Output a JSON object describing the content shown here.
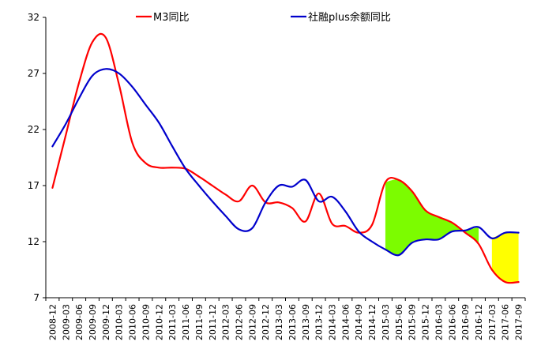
{
  "chart_data": {
    "type": "line",
    "title": "",
    "xlabel": "",
    "ylabel": "",
    "ylim": [
      7,
      32
    ],
    "yticks": [
      7,
      12,
      17,
      22,
      27,
      32
    ],
    "categories": [
      "2008-12",
      "2009-03",
      "2009-06",
      "2009-09",
      "2009-12",
      "2010-03",
      "2010-06",
      "2010-09",
      "2010-12",
      "2011-03",
      "2011-06",
      "2011-09",
      "2011-12",
      "2012-03",
      "2012-06",
      "2012-09",
      "2012-12",
      "2013-03",
      "2013-06",
      "2013-09",
      "2013-12",
      "2014-03",
      "2014-06",
      "2014-09",
      "2014-12",
      "2015-03",
      "2015-06",
      "2015-09",
      "2015-12",
      "2016-03",
      "2016-06",
      "2016-09",
      "2016-12",
      "2017-03",
      "2017-06",
      "2017-09"
    ],
    "legend_position": "top",
    "grid": false,
    "series": [
      {
        "name": "M3同比",
        "color": "#ff0000",
        "values": [
          16.8,
          21.5,
          26.2,
          29.8,
          30.2,
          26.0,
          20.8,
          19.0,
          18.6,
          18.6,
          18.5,
          17.8,
          17.0,
          16.2,
          15.6,
          17.0,
          15.5,
          15.5,
          15.0,
          13.8,
          16.3,
          13.6,
          13.4,
          12.8,
          13.5,
          17.3,
          17.5,
          16.5,
          14.8,
          14.2,
          13.7,
          12.8,
          11.8,
          9.5,
          8.4,
          8.4
        ]
      },
      {
        "name": "社融plus余额同比",
        "color": "#0000cc",
        "values": [
          20.5,
          22.5,
          24.8,
          26.8,
          27.4,
          27.0,
          25.8,
          24.2,
          22.6,
          20.5,
          18.5,
          17.0,
          15.6,
          14.3,
          13.1,
          13.2,
          15.5,
          17.0,
          16.9,
          17.5,
          15.6,
          16.0,
          14.7,
          12.9,
          12.0,
          11.3,
          10.8,
          11.9,
          12.2,
          12.2,
          12.9,
          13.0,
          13.3,
          12.3,
          12.8,
          12.8
        ]
      }
    ],
    "fill_regions": [
      {
        "color": "#7cfc00",
        "between": [
          "M3同比",
          "社融plus余额同比"
        ],
        "from": "2015-03",
        "to": "2016-12"
      },
      {
        "color": "#ffff00",
        "between": [
          "社融plus余额同比",
          "M3同比"
        ],
        "from": "2017-03",
        "to": "2017-09"
      }
    ]
  }
}
